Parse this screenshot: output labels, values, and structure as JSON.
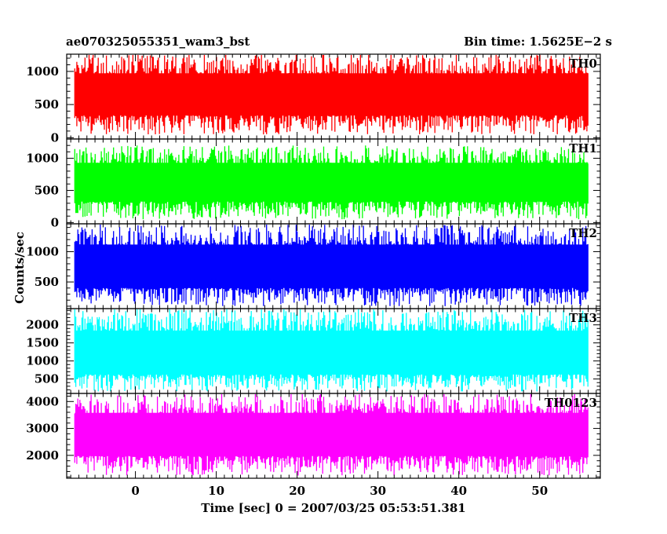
{
  "chart_data": {
    "type": "line",
    "title": "ae070325055351_wam3_bst",
    "subtitle": "Bin time: 1.5625E−2 s",
    "xlabel": "Time [sec] 0 = 2007/03/25 05:53:51.381",
    "ylabel": "Counts/sec",
    "xlim": [
      -8.5,
      57.5
    ],
    "x_ticks": [
      0,
      10,
      20,
      30,
      40,
      50
    ],
    "x_range_data": [
      -7.5,
      56
    ],
    "bin_time_s": 0.015625,
    "grid": false,
    "legend": "none",
    "panels": [
      {
        "name": "TH0",
        "color": "#ff0000",
        "ylim": [
          -20,
          1260
        ],
        "y_ticks": [
          0,
          500,
          1000
        ],
        "approx_min": 50,
        "approx_max": 1260,
        "approx_mean": 620
      },
      {
        "name": "TH1",
        "color": "#00ff00",
        "ylim": [
          -20,
          1300
        ],
        "y_ticks": [
          0,
          500,
          1000
        ],
        "approx_min": 50,
        "approx_max": 1200,
        "approx_mean": 600
      },
      {
        "name": "TH2",
        "color": "#0000ff",
        "ylim": [
          60,
          1460
        ],
        "y_ticks": [
          500,
          1000
        ],
        "approx_min": 100,
        "approx_max": 1460,
        "approx_mean": 700
      },
      {
        "name": "TH3",
        "color": "#00ffff",
        "ylim": [
          100,
          2450
        ],
        "y_ticks": [
          500,
          1000,
          1500,
          2000
        ],
        "approx_min": 150,
        "approx_max": 2450,
        "approx_mean": 1100
      },
      {
        "name": "TH0123",
        "color": "#ff00ff",
        "ylim": [
          1150,
          4300
        ],
        "y_ticks": [
          2000,
          3000,
          4000
        ],
        "approx_min": 1250,
        "approx_max": 4300,
        "approx_mean": 2700
      }
    ]
  }
}
